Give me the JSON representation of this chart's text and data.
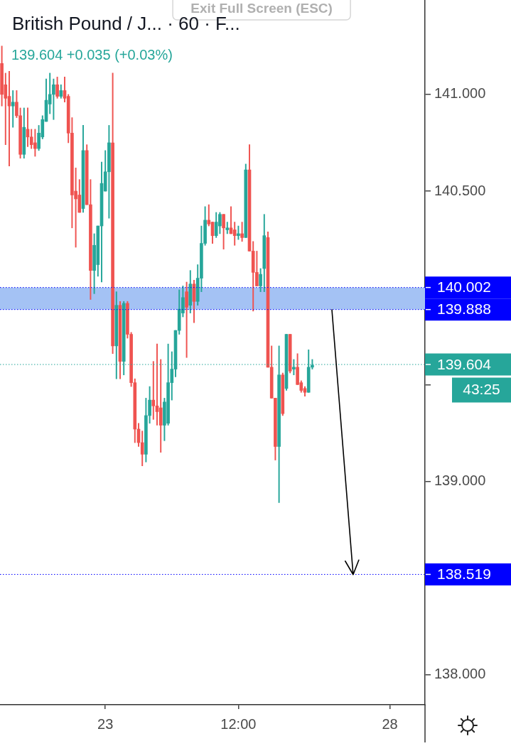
{
  "chart_data": {
    "type": "candlestick",
    "title": "British Pound / J... · 60 · F...",
    "subtitle": "139.604 +0.035 (+0.03%)",
    "categories": [
      null,
      null,
      null,
      null,
      null,
      null,
      null,
      null,
      null,
      null,
      null,
      null,
      null,
      null,
      null,
      null,
      null,
      null,
      null,
      null,
      null,
      null,
      null,
      null,
      null,
      null,
      null,
      null,
      "23",
      null,
      null,
      null,
      null,
      null,
      null,
      null,
      null,
      null,
      null,
      null,
      null,
      null,
      null,
      null,
      null,
      null,
      null,
      null,
      null,
      null,
      null,
      null,
      null,
      null,
      null,
      null,
      null,
      null,
      null,
      null,
      null,
      null,
      null,
      null,
      "12:00",
      null,
      null,
      null,
      null,
      null,
      null,
      null,
      null,
      null,
      null,
      null,
      null,
      null,
      null,
      null,
      null,
      null,
      null,
      null,
      null,
      null,
      null,
      null,
      null,
      null,
      null,
      null,
      null,
      null,
      null,
      null,
      null,
      null,
      null,
      null,
      null,
      null,
      null,
      null,
      null,
      "28",
      null,
      null,
      null,
      null,
      null,
      null,
      null,
      null,
      null
    ],
    "ohlc": [
      [
        141.16,
        141.25,
        140.94,
        141.0
      ],
      [
        141.05,
        141.11,
        140.74,
        140.98
      ],
      [
        140.99,
        141.12,
        140.63,
        140.94
      ],
      [
        140.94,
        141.02,
        140.83,
        140.96
      ],
      [
        140.96,
        141.02,
        140.88,
        140.89
      ],
      [
        140.89,
        140.93,
        140.67,
        140.69
      ],
      [
        140.69,
        140.93,
        140.67,
        140.83
      ],
      [
        140.82,
        140.93,
        140.73,
        140.78
      ],
      [
        140.78,
        140.82,
        140.72,
        140.74
      ],
      [
        140.75,
        140.82,
        140.68,
        140.72
      ],
      [
        140.72,
        140.84,
        140.71,
        140.8
      ],
      [
        140.78,
        140.89,
        140.77,
        140.87
      ],
      [
        140.86,
        141.08,
        140.86,
        140.97
      ],
      [
        140.95,
        141.11,
        140.9,
        141.0
      ],
      [
        141.0,
        141.08,
        140.87,
        141.05
      ],
      [
        141.05,
        141.09,
        140.98,
        140.99
      ],
      [
        140.99,
        141.05,
        140.98,
        141.02
      ],
      [
        141.02,
        141.09,
        140.96,
        140.98
      ],
      [
        140.99,
        141.0,
        140.75,
        140.8
      ],
      [
        140.8,
        140.88,
        140.31,
        140.48
      ],
      [
        140.5,
        140.62,
        140.21,
        140.46
      ],
      [
        140.48,
        140.56,
        140.39,
        140.39
      ],
      [
        140.41,
        140.84,
        140.39,
        140.71
      ],
      [
        140.71,
        140.74,
        140.43,
        140.43
      ],
      [
        140.43,
        140.56,
        139.94,
        140.09
      ],
      [
        140.09,
        140.28,
        139.97,
        140.22
      ],
      [
        140.12,
        140.32,
        140.06,
        140.32
      ],
      [
        140.32,
        140.65,
        140.03,
        140.54
      ],
      [
        140.5,
        140.71,
        140.5,
        140.6
      ],
      [
        140.6,
        140.84,
        140.36,
        140.75
      ],
      [
        140.75,
        141.11,
        139.66,
        139.7
      ],
      [
        139.7,
        139.98,
        139.53,
        139.91
      ],
      [
        139.91,
        139.93,
        139.53,
        139.62
      ],
      [
        139.62,
        139.93,
        139.55,
        139.92
      ],
      [
        139.92,
        139.93,
        139.74,
        139.76
      ],
      [
        139.76,
        139.77,
        139.49,
        139.51
      ],
      [
        139.51,
        139.53,
        139.2,
        139.27
      ],
      [
        139.27,
        139.3,
        139.18,
        139.2
      ],
      [
        139.2,
        139.26,
        139.08,
        139.14
      ],
      [
        139.14,
        139.43,
        139.1,
        139.34
      ],
      [
        139.34,
        139.49,
        139.3,
        139.42
      ],
      [
        139.42,
        139.62,
        139.32,
        139.39
      ],
      [
        139.39,
        139.71,
        139.29,
        139.36
      ],
      [
        139.38,
        139.63,
        139.15,
        139.29
      ],
      [
        139.29,
        139.43,
        139.21,
        139.41
      ],
      [
        139.3,
        139.71,
        139.29,
        139.51
      ],
      [
        139.51,
        139.67,
        139.42,
        139.58
      ],
      [
        139.58,
        139.78,
        139.54,
        139.78
      ],
      [
        139.78,
        139.99,
        139.76,
        139.89
      ],
      [
        139.87,
        140.01,
        139.85,
        139.95
      ],
      [
        139.98,
        140.03,
        139.64,
        139.9
      ],
      [
        139.91,
        140.09,
        139.87,
        140.02
      ],
      [
        140.02,
        140.04,
        139.82,
        139.93
      ],
      [
        139.93,
        140.12,
        139.91,
        140.05
      ],
      [
        140.05,
        140.32,
        139.98,
        140.23
      ],
      [
        140.23,
        140.42,
        140.22,
        140.35
      ],
      [
        140.35,
        140.43,
        140.32,
        140.33
      ],
      [
        140.34,
        140.34,
        140.23,
        140.27
      ],
      [
        140.27,
        140.39,
        140.26,
        140.34
      ],
      [
        140.32,
        140.39,
        140.28,
        140.38
      ],
      [
        140.38,
        140.38,
        140.2,
        140.31
      ],
      [
        140.3,
        140.34,
        140.28,
        140.31
      ],
      [
        140.31,
        140.42,
        140.28,
        140.28
      ],
      [
        140.3,
        140.34,
        140.22,
        140.27
      ],
      [
        140.27,
        140.32,
        140.25,
        140.28
      ],
      [
        140.28,
        140.34,
        140.24,
        140.26
      ],
      [
        140.26,
        140.64,
        140.26,
        140.61
      ],
      [
        140.61,
        140.74,
        140.19,
        140.19
      ],
      [
        140.19,
        140.24,
        139.88,
        140.08
      ],
      [
        140.08,
        140.19,
        140.01,
        140.01
      ],
      [
        140.01,
        140.1,
        139.98,
        140.07
      ],
      [
        140.1,
        140.38,
        139.98,
        140.27
      ],
      [
        140.26,
        140.29,
        139.59,
        139.59
      ],
      [
        139.59,
        139.7,
        139.43,
        139.43
      ],
      [
        139.43,
        139.43,
        139.11,
        139.18
      ],
      [
        139.18,
        139.7,
        138.89,
        139.55
      ],
      [
        139.55,
        139.56,
        139.34,
        139.35
      ],
      [
        139.48,
        139.76,
        139.47,
        139.76
      ],
      [
        139.76,
        139.76,
        139.56,
        139.57
      ],
      [
        139.58,
        139.63,
        139.55,
        139.59
      ],
      [
        139.59,
        139.66,
        139.5,
        139.5
      ],
      [
        139.51,
        139.52,
        139.46,
        139.47
      ],
      [
        139.48,
        139.49,
        139.44,
        139.46
      ],
      [
        139.46,
        139.68,
        139.46,
        139.59
      ],
      [
        139.59,
        139.63,
        139.58,
        139.6
      ],
      null,
      null,
      null,
      null,
      null,
      null,
      null,
      null,
      null,
      null,
      null,
      null,
      null,
      null,
      null,
      null,
      null,
      null,
      null,
      null,
      null,
      null,
      null,
      null,
      null,
      null,
      null,
      null,
      null,
      null
    ],
    "colors": [
      "#ef5350",
      "#ef5350",
      "#ef5350",
      "#26a69a",
      "#ef5350",
      "#ef5350",
      "#26a69a",
      "#ef5350",
      "#ef5350",
      "#ef5350",
      "#26a69a",
      "#26a69a",
      "#26a69a",
      "#26a69a",
      "#26a69a",
      "#ef5350",
      "#26a69a",
      "#ef5350",
      "#ef5350",
      "#ef5350",
      "#ef5350",
      "#ef5350",
      "#26a69a",
      "#ef5350",
      "#ef5350",
      "#26a69a",
      "#26a69a",
      "#26a69a",
      "#26a69a",
      "#26a69a",
      "#ef5350",
      "#26a69a",
      "#ef5350",
      "#26a69a",
      "#ef5350",
      "#ef5350",
      "#ef5350",
      "#ef5350",
      "#ef5350",
      "#26a69a",
      "#26a69a",
      "#ef5350",
      "#ef5350",
      "#ef5350",
      "#26a69a",
      "#26a69a",
      "#26a69a",
      "#26a69a",
      "#26a69a",
      "#26a69a",
      "#ef5350",
      "#26a69a",
      "#ef5350",
      "#26a69a",
      "#26a69a",
      "#26a69a",
      "#ef5350",
      "#ef5350",
      "#26a69a",
      "#26a69a",
      "#ef5350",
      "#26a69a",
      "#ef5350",
      "#ef5350",
      "#26a69a",
      "#ef5350",
      "#26a69a",
      "#ef5350",
      "#ef5350",
      "#ef5350",
      "#26a69a",
      "#26a69a",
      "#ef5350",
      "#ef5350",
      "#ef5350",
      "#26a69a",
      "#ef5350",
      "#26a69a",
      "#ef5350",
      "#26a69a",
      "#ef5350",
      "#ef5350",
      "#ef5350",
      "#26a69a",
      "#26a69a",
      null,
      null,
      null,
      null,
      null,
      null,
      null,
      null,
      null,
      null,
      null,
      null,
      null,
      null,
      null,
      null,
      null,
      null,
      null,
      null,
      null,
      null,
      null,
      null,
      null,
      null,
      null,
      null,
      null,
      null
    ],
    "ylim": [
      137.845,
      141.488
    ],
    "yticks": [
      {
        "value": 138,
        "label": "138.000"
      },
      {
        "value": 139,
        "label": "139.000"
      },
      {
        "value": 139.5,
        "label": null
      },
      {
        "value": 140.5,
        "label": "140.500"
      },
      {
        "value": 141,
        "label": "141.000"
      }
    ],
    "ref_lines": [
      {
        "axis": "y",
        "value": 140.002,
        "label": "140.002",
        "color": "#0000ff",
        "line_style": "dotted"
      },
      {
        "axis": "y",
        "value": 139.888,
        "label": "139.888",
        "color": "#0000ff",
        "line_style": "dotted"
      },
      {
        "axis": "y",
        "value": 139.604,
        "label": "139.604",
        "color": "#26a69a",
        "line_style": "dotted"
      },
      {
        "axis": "y",
        "value": 138.519,
        "label": "138.519",
        "color": "#0000ff",
        "line_style": "dotted"
      }
    ],
    "bands": [
      {
        "axis": "y",
        "from": 139.888,
        "to": 140.002,
        "color": "#a4c2f4"
      }
    ],
    "annotations": [
      "Exit Full Screen (ESC)",
      "43:25"
    ]
  }
}
